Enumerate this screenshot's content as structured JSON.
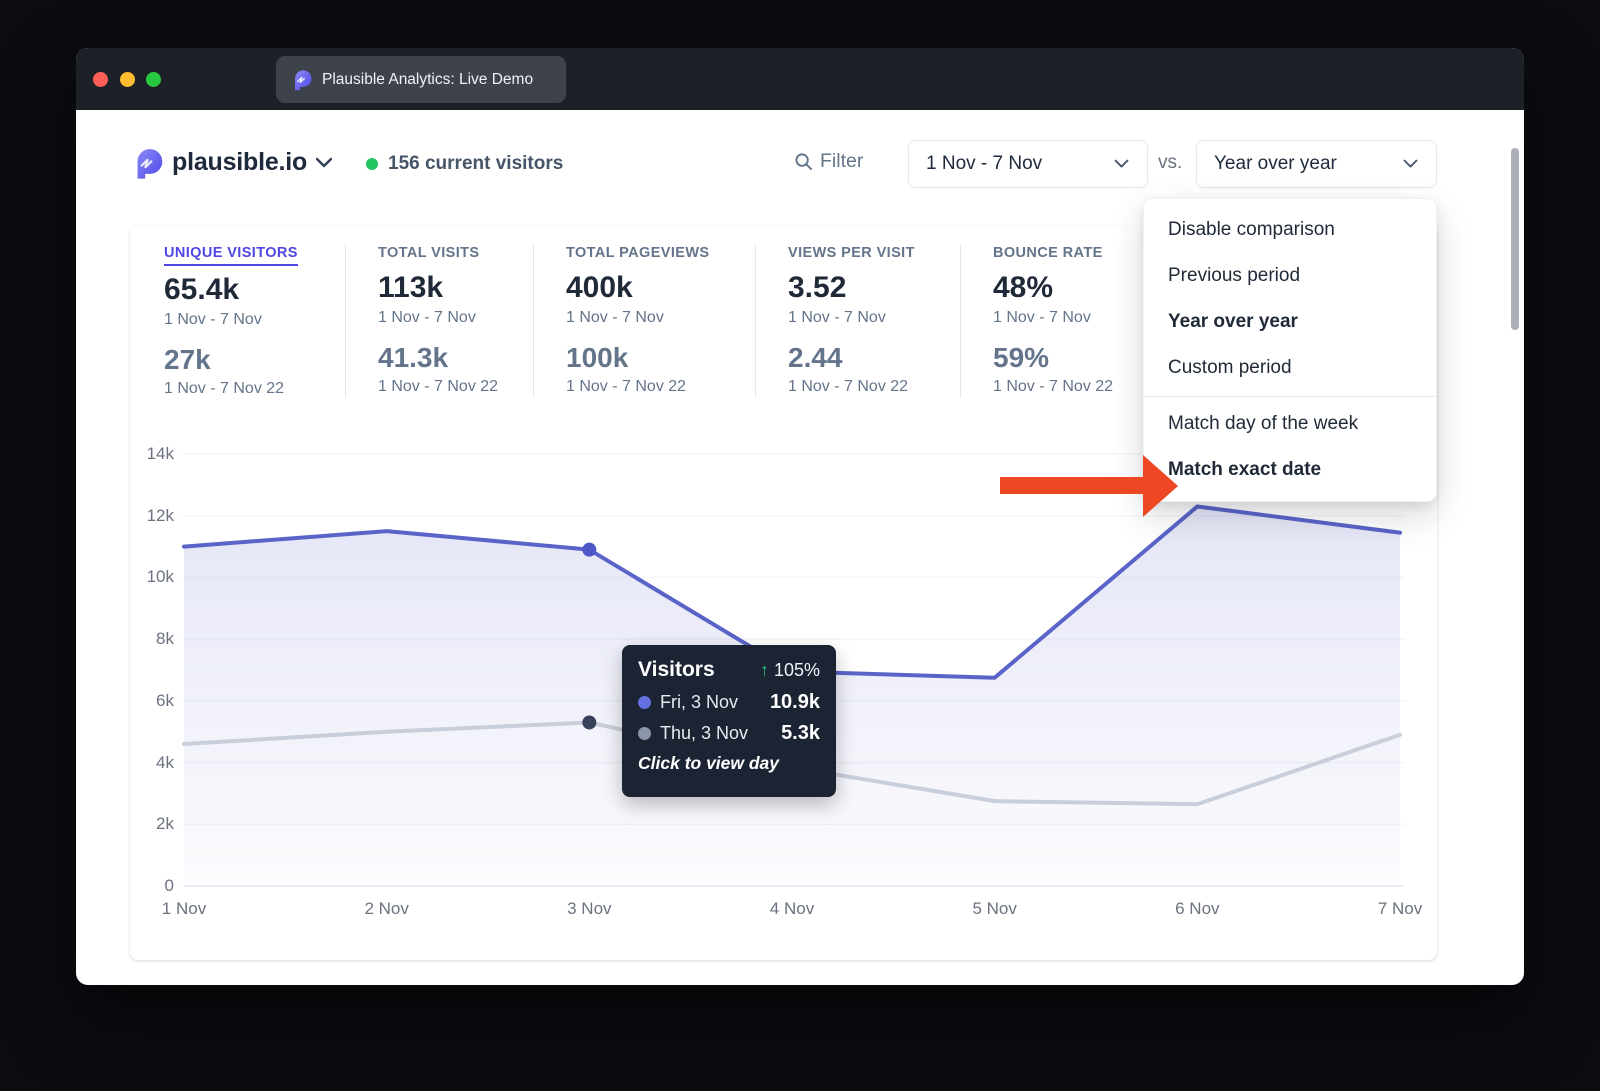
{
  "window": {
    "tab_title": "Plausible Analytics: Live Demo"
  },
  "header": {
    "site_name": "plausible.io",
    "current_visitors": "156 current visitors",
    "filter_label": "Filter",
    "date_range": "1 Nov - 7 Nov",
    "vs_label": "vs.",
    "comparison_mode": "Year over year"
  },
  "stats": [
    {
      "label": "UNIQUE VISITORS",
      "value": "65.4k",
      "period": "1 Nov - 7 Nov",
      "comp_value": "27k",
      "comp_period": "1 Nov - 7 Nov 22"
    },
    {
      "label": "TOTAL VISITS",
      "value": "113k",
      "period": "1 Nov - 7 Nov",
      "comp_value": "41.3k",
      "comp_period": "1 Nov - 7 Nov 22"
    },
    {
      "label": "TOTAL PAGEVIEWS",
      "value": "400k",
      "period": "1 Nov - 7 Nov",
      "comp_value": "100k",
      "comp_period": "1 Nov - 7 Nov 22"
    },
    {
      "label": "VIEWS PER VISIT",
      "value": "3.52",
      "period": "1 Nov - 7 Nov",
      "comp_value": "2.44",
      "comp_period": "1 Nov - 7 Nov 22"
    },
    {
      "label": "BOUNCE RATE",
      "value": "48%",
      "period": "1 Nov - 7 Nov",
      "comp_value": "59%",
      "comp_period": "1 Nov - 7 Nov 22"
    }
  ],
  "comparison_menu": {
    "items": [
      "Disable comparison",
      "Previous period",
      "Year over year",
      "Custom period",
      "Match day of the week",
      "Match exact date"
    ],
    "selected": "Year over year",
    "highlighted": "Match exact date"
  },
  "tooltip": {
    "title": "Visitors",
    "change_arrow": "↑",
    "change": "105%",
    "rows": [
      {
        "label": "Fri, 3 Nov",
        "value": "10.9k",
        "dot": "#6470e0"
      },
      {
        "label": "Thu, 3 Nov",
        "value": "5.3k",
        "dot": "#8b94a8"
      }
    ],
    "footer": "Click to view day"
  },
  "chart_data": {
    "type": "line",
    "title": "Unique Visitors",
    "x": [
      "1 Nov",
      "2 Nov",
      "3 Nov",
      "4 Nov",
      "5 Nov",
      "6 Nov",
      "7 Nov"
    ],
    "series": [
      {
        "name": "1 Nov - 7 Nov",
        "color": "#5a64c8",
        "marker_color": "#4d57c5",
        "marker_index": 2,
        "area": true,
        "values": [
          11000,
          11500,
          10900,
          6950,
          6750,
          12300,
          11450
        ]
      },
      {
        "name": "1 Nov - 7 Nov 22",
        "color": "#c9cedb",
        "marker_color": "#39415a",
        "marker_index": 2,
        "area": false,
        "values": [
          4600,
          5000,
          5300,
          3850,
          2750,
          2650,
          4900
        ]
      }
    ],
    "ylim": [
      0,
      14000
    ],
    "yticks": [
      "0",
      "2k",
      "4k",
      "6k",
      "8k",
      "10k",
      "12k",
      "14k"
    ],
    "xlabel": "",
    "ylabel": "",
    "grid": true,
    "legend": "none"
  },
  "colors": {
    "accent": "#4f46e5",
    "live_dot": "#22c55e",
    "arrow": "#ee4723",
    "positive": "#2dbd7e"
  }
}
